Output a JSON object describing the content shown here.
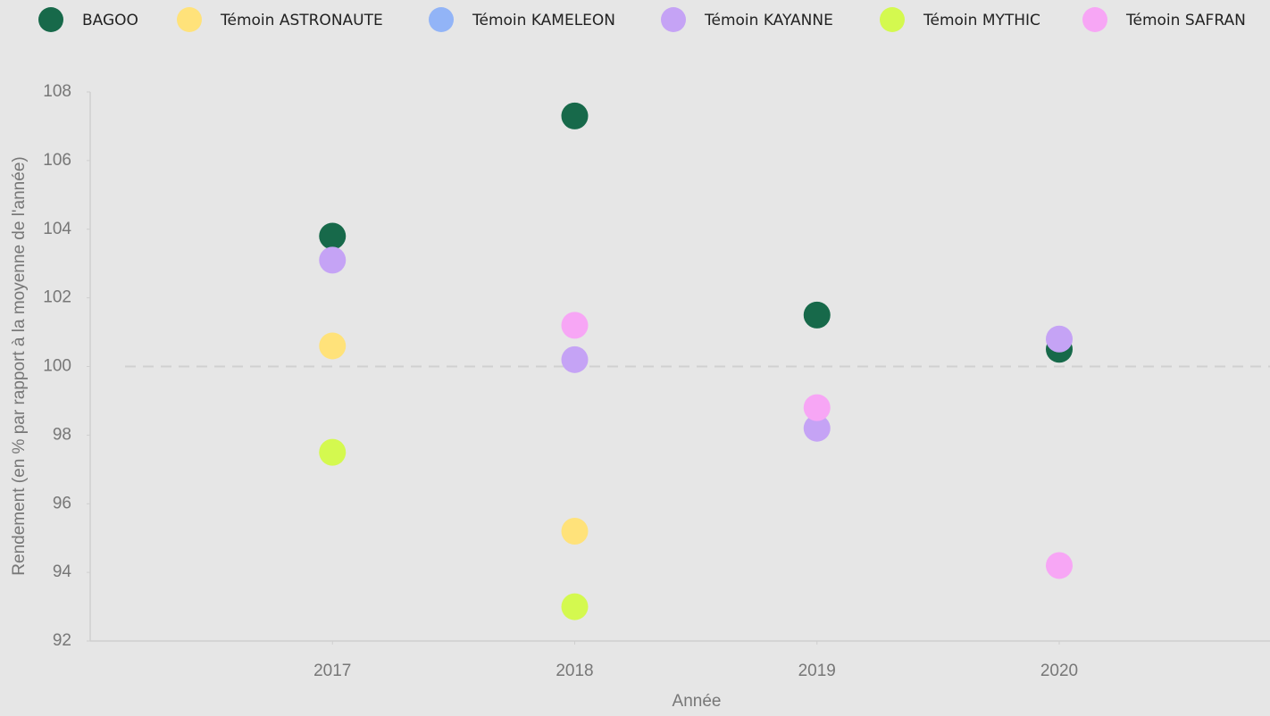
{
  "chart_data": {
    "type": "scatter",
    "x": [
      2017,
      2018,
      2019,
      2020
    ],
    "xlim": [
      2016,
      2020.87
    ],
    "xticks": [
      2017,
      2018,
      2019,
      2020
    ],
    "ylim": [
      92,
      108
    ],
    "yticks": [
      92,
      94,
      96,
      98,
      100,
      102,
      104,
      106,
      108
    ],
    "x_label": "Année",
    "y_label": "Rendement (en % par rapport à la moyenne de l'année)",
    "reference_line": 100,
    "legend": "top",
    "series": [
      {
        "name": "BAGOO",
        "color": "#17694a",
        "values": [
          103.8,
          107.3,
          101.5,
          100.5
        ]
      },
      {
        "name": "Témoin ASTRONAUTE",
        "color": "#ffe27a",
        "values": [
          100.6,
          95.2,
          null,
          null
        ]
      },
      {
        "name": "Témoin KAMELEON",
        "color": "#92b4f7",
        "values": [
          null,
          null,
          null,
          null
        ]
      },
      {
        "name": "Témoin KAYANNE",
        "color": "#c5a3f5",
        "values": [
          103.1,
          100.2,
          98.2,
          100.8
        ]
      },
      {
        "name": "Témoin MYTHIC",
        "color": "#d4f94f",
        "values": [
          97.5,
          93.0,
          null,
          null
        ]
      },
      {
        "name": "Témoin SAFRAN",
        "color": "#f7a6f5",
        "values": [
          null,
          101.2,
          98.8,
          94.2
        ]
      }
    ]
  }
}
